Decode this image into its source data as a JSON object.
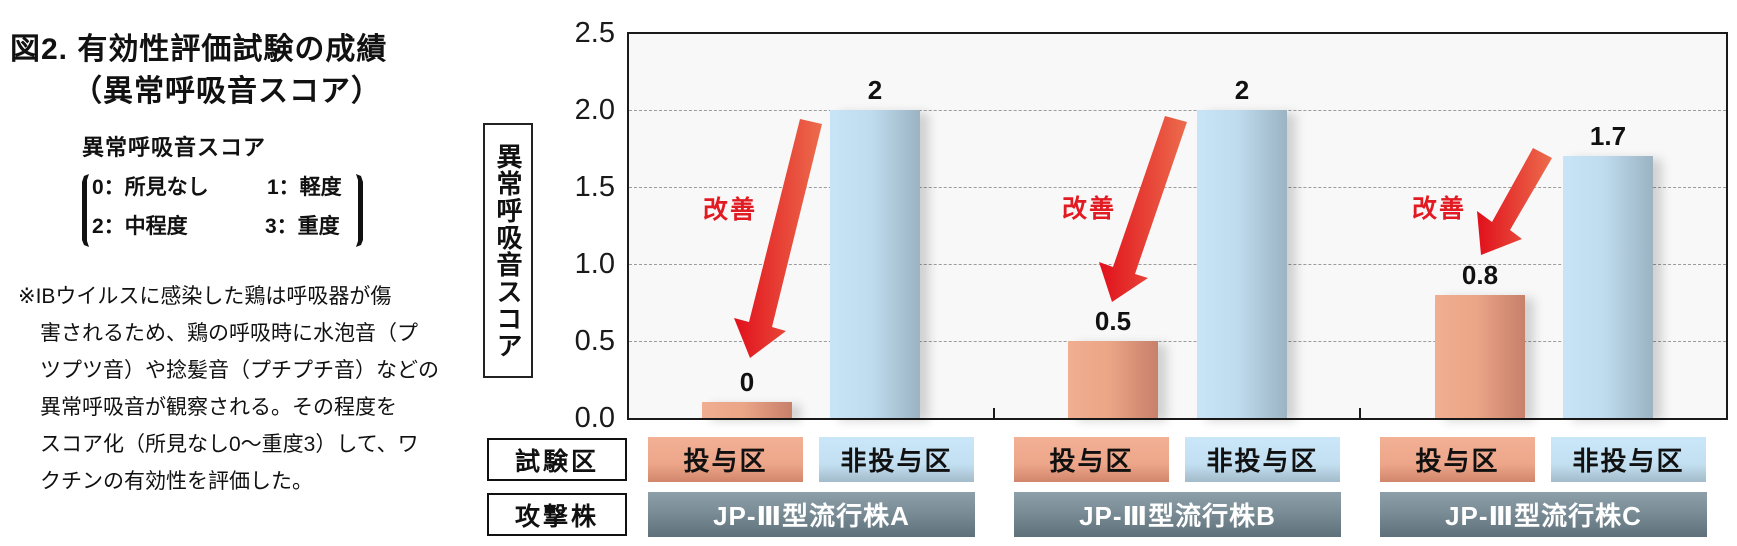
{
  "figure": {
    "title_line1": "図2. 有効性評価試験の成績",
    "title_line2": "（異常呼吸音スコア）"
  },
  "legend": {
    "heading": "異常呼吸音スコア",
    "scores": [
      {
        "label": "0：所見なし"
      },
      {
        "label": "1：軽度"
      },
      {
        "label": "2：中程度"
      },
      {
        "label": "3：重度"
      }
    ]
  },
  "note": {
    "lines": [
      "※IBウイルスに感染した鶏は呼吸器が傷",
      "害されるため、鶏の呼吸時に水泡音（プ",
      "ツプツ音）や捻髪音（プチプチ音）などの",
      "異常呼吸音が観察される。その程度を",
      "スコア化（所見なし0～重度3）して、ワ",
      "クチンの有効性を評価した。"
    ]
  },
  "colors": {
    "dose_bar": "#eda487",
    "nodose_bar": "#bfdcee",
    "strain_box": "#74868f",
    "arrow_start": "#e10f1b",
    "arrow_end": "#ec6d4d",
    "annotation_text": "#e21a22"
  },
  "chart_data": {
    "type": "bar",
    "title": "図2. 有効性評価試験の成績（異常呼吸音スコア）",
    "xlabel": "",
    "ylabel": "異常呼吸音スコア",
    "ylim": [
      0,
      2.5
    ],
    "yticks": [
      "0.0",
      "0.5",
      "1.0",
      "1.5",
      "2.0",
      "2.5"
    ],
    "grid": true,
    "categories": [
      "JP-Ⅲ型流行株A",
      "JP-Ⅲ型流行株B",
      "JP-Ⅲ型流行株C"
    ],
    "series": [
      {
        "name": "投与区",
        "values": [
          0,
          0.5,
          0.8
        ],
        "labels": [
          "0",
          "0.5",
          "0.8"
        ],
        "color": "#eda487"
      },
      {
        "name": "非投与区",
        "values": [
          2,
          2,
          1.7
        ],
        "labels": [
          "2",
          "2",
          "1.7"
        ],
        "color": "#bfdcee"
      }
    ],
    "annotations": [
      {
        "text": "改善",
        "category": "JP-Ⅲ型流行株A",
        "type": "arrow-down"
      },
      {
        "text": "改善",
        "category": "JP-Ⅲ型流行株B",
        "type": "arrow-down"
      },
      {
        "text": "改善",
        "category": "JP-Ⅲ型流行株C",
        "type": "arrow-down"
      }
    ],
    "row_headers": {
      "group": "試験区",
      "strain": "攻撃株"
    },
    "legend_position": "below axis (category rows)"
  }
}
